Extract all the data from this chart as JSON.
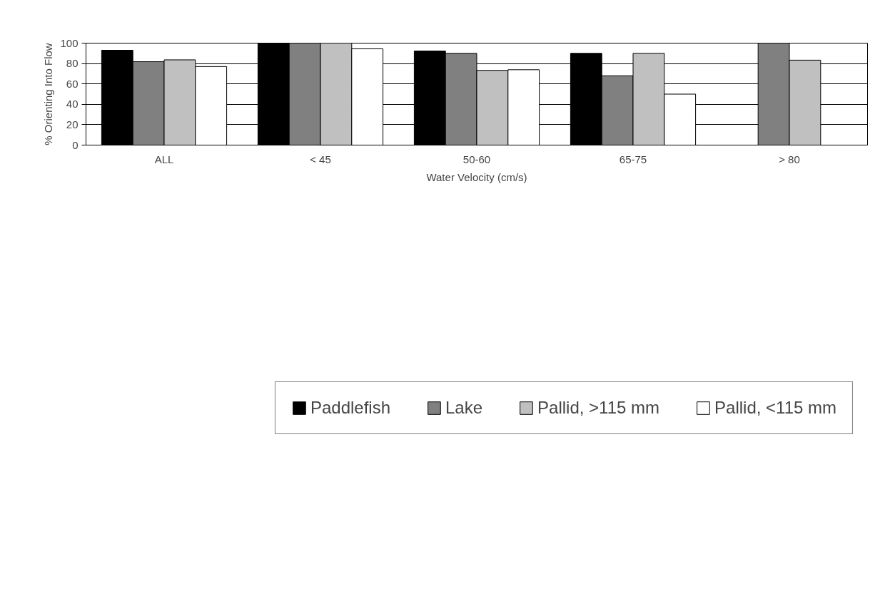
{
  "chart_data": {
    "type": "bar",
    "xlabel": "Water Velocity (cm/s)",
    "ylabel": "% Orienting Into Flow",
    "categories": [
      "ALL",
      "< 45",
      "50-60",
      "65-75",
      "> 80"
    ],
    "series": [
      {
        "name": "Paddlefish",
        "color": "#000000",
        "values": [
          93,
          100,
          92.3,
          90,
          null
        ]
      },
      {
        "name": "Lake",
        "color": "#808080",
        "values": [
          81.8,
          100,
          90,
          68,
          100
        ]
      },
      {
        "name": "Pallid, >115 mm",
        "color": "#c0c0c0",
        "values": [
          83.6,
          100,
          73.3,
          90,
          83.3
        ]
      },
      {
        "name": "Pallid, <115 mm",
        "color": "#ffffff",
        "values": [
          77,
          94.4,
          73.9,
          50,
          null
        ]
      }
    ],
    "ylim": [
      0,
      100
    ],
    "yticks": [
      0,
      20,
      40,
      60,
      80,
      100
    ],
    "grid": "y",
    "legend": "bottom"
  }
}
